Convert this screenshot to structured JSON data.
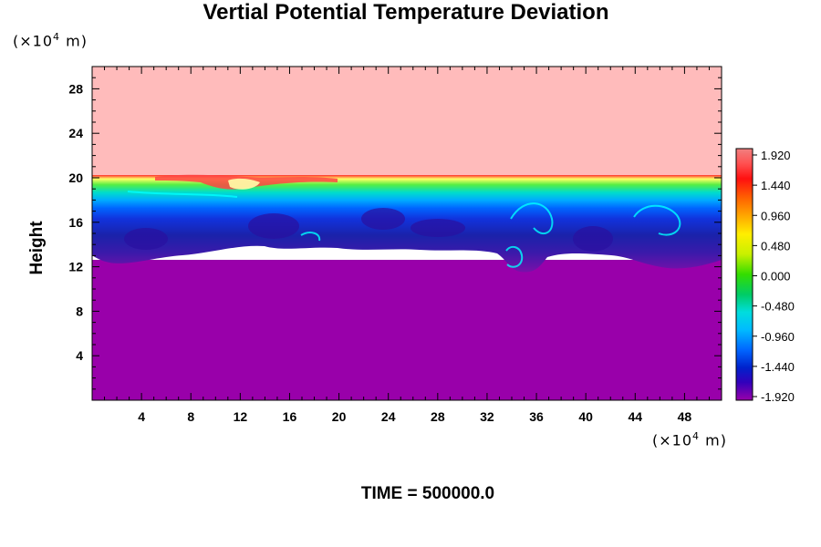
{
  "title": "Vertial Potential Temperature Deviation",
  "time_label": "TIME = 500000.0",
  "chart_data": {
    "type": "heatmap",
    "title": "Vertial Potential Temperature Deviation",
    "ylabel": "Height",
    "xlabel": "",
    "x_unit": {
      "prefix": "(×10",
      "exp": "4",
      "suffix": " m)"
    },
    "y_unit": {
      "prefix": "(×10",
      "exp": "4",
      "suffix": " m)"
    },
    "xlim": [
      0,
      51
    ],
    "ylim": [
      0,
      30
    ],
    "x_ticks": [
      4,
      8,
      12,
      16,
      20,
      24,
      28,
      32,
      36,
      40,
      44,
      48
    ],
    "y_ticks": [
      4,
      8,
      12,
      16,
      20,
      24,
      28
    ],
    "grid": false,
    "colorbar": {
      "min": -1.92,
      "max": 1.92,
      "tick_labels": [
        "1.920",
        "1.440",
        "0.960",
        "0.480",
        "0.000",
        "-0.480",
        "-0.960",
        "-1.440",
        "-1.920"
      ],
      "tick_values": [
        1.92,
        1.44,
        0.96,
        0.48,
        0.0,
        -0.48,
        -0.96,
        -1.44,
        -1.92
      ],
      "placement": "right"
    },
    "field_summary": [
      {
        "region": "upper layer",
        "y_range": [
          20.2,
          30
        ],
        "value": 1.92,
        "color": "#ffbbbb"
      },
      {
        "region": "lower layer",
        "y_range": [
          0,
          12
        ],
        "value": -1.92,
        "color": "#9900aa"
      }
    ]
  },
  "colors": {
    "upper_layer": "#ffbbbb",
    "lower_layer": "#9900aa",
    "frame": "#000000"
  }
}
